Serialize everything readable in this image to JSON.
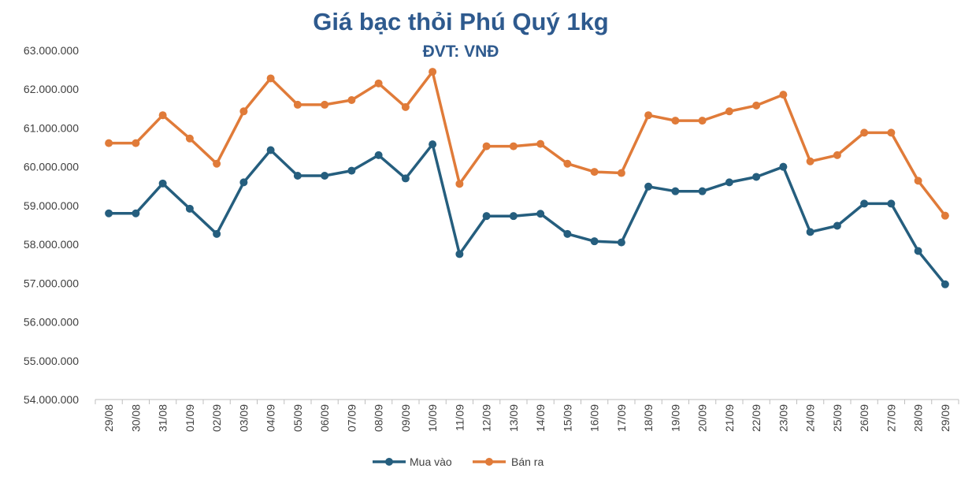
{
  "chart_data": {
    "type": "line",
    "title": "Giá bạc thỏi Phú Quý 1kg",
    "subtitle": "ĐVT: VNĐ",
    "ylim": [
      54000000,
      63000000
    ],
    "y_ticks": [
      "54.000.000",
      "55.000.000",
      "56.000.000",
      "57.000.000",
      "58.000.000",
      "59.000.000",
      "60.000.000",
      "61.000.000",
      "62.000.000",
      "63.000.000"
    ],
    "categories": [
      "29/08",
      "30/08",
      "31/08",
      "01/09",
      "02/09",
      "03/09",
      "04/09",
      "05/09",
      "06/09",
      "07/09",
      "08/09",
      "09/09",
      "10/09",
      "11/09",
      "12/09",
      "13/09",
      "14/09",
      "15/09",
      "16/09",
      "17/09",
      "18/09",
      "19/09",
      "20/09",
      "21/09",
      "22/09",
      "23/09",
      "24/09",
      "25/09",
      "26/09",
      "27/09",
      "28/09",
      "29/09"
    ],
    "series": [
      {
        "name": "Mua vào",
        "color": "#255e7e",
        "values": [
          58800000,
          58800000,
          59570000,
          58920000,
          58270000,
          59600000,
          60430000,
          59770000,
          59770000,
          59900000,
          60300000,
          59700000,
          60580000,
          57750000,
          58730000,
          58730000,
          58790000,
          58270000,
          58080000,
          58050000,
          59490000,
          59370000,
          59370000,
          59600000,
          59740000,
          60000000,
          58320000,
          58480000,
          59050000,
          59050000,
          57830000,
          56970000
        ]
      },
      {
        "name": "Bán ra",
        "color": "#e07b39",
        "values": [
          60610000,
          60610000,
          61330000,
          60730000,
          60080000,
          61430000,
          62280000,
          61600000,
          61600000,
          61720000,
          62150000,
          61540000,
          62450000,
          59560000,
          60530000,
          60530000,
          60590000,
          60080000,
          59870000,
          59840000,
          61330000,
          61190000,
          61190000,
          61430000,
          61580000,
          61860000,
          60140000,
          60300000,
          60880000,
          60880000,
          59640000,
          58740000
        ]
      }
    ],
    "grid": false,
    "legend_position": "bottom"
  }
}
